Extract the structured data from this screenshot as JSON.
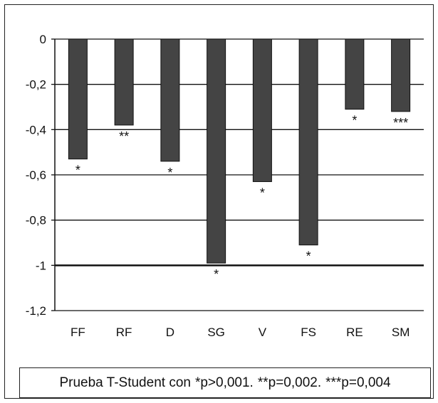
{
  "chart_data": {
    "type": "bar",
    "categories": [
      "FF",
      "RF",
      "D",
      "SG",
      "V",
      "FS",
      "RE",
      "SM"
    ],
    "values": [
      -0.53,
      -0.38,
      -0.54,
      -0.99,
      -0.63,
      -0.91,
      -0.31,
      -0.32
    ],
    "significance": [
      "*",
      "**",
      "*",
      "*",
      "*",
      "*",
      "*",
      "***"
    ],
    "ylim": [
      -1.2,
      0
    ],
    "yticks": [
      0,
      -0.2,
      -0.4,
      -0.6,
      -0.8,
      -1,
      -1.2
    ],
    "ytick_labels": [
      "0",
      "-0,2",
      "-0,4",
      "-0,6",
      "-0,8",
      "-1",
      "-1,2"
    ],
    "grid": true,
    "title": "",
    "xlabel": "",
    "ylabel": "",
    "colors": {
      "bar_fill": "#444444",
      "bar_stroke": "#111111",
      "grid": "#111111"
    }
  },
  "footnote": {
    "prefix": "Prueba T-Student con",
    "p1": "*p>0,001.",
    "p2": "**p=0,002.",
    "p3": "***p=0,004"
  }
}
